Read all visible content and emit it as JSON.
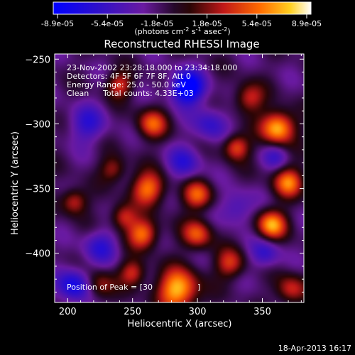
{
  "chart_data": {
    "type": "heatmap",
    "title": "Reconstructed RHESSI Image",
    "xlabel": "Heliocentric X (arcsec)",
    "ylabel": "Heliocentric Y (arcsec)",
    "xlim": [
      190,
      382
    ],
    "ylim": [
      -438,
      -246
    ],
    "x_ticks": [
      200,
      250,
      300,
      350
    ],
    "y_ticks": [
      -250,
      -300,
      -350,
      -400
    ],
    "colorbar": {
      "min": -8.9e-05,
      "max": 8.9e-05,
      "tick_labels": [
        "-8.9e-05",
        "-5.4e-05",
        "-1.8e-05",
        "1.8e-05",
        "5.4e-05",
        "8.9e-05"
      ],
      "unit_text": "(photons cm",
      "unit_sup1": "-2",
      "unit_mid": " s",
      "unit_sup2": "-1",
      "unit_end": " asec",
      "unit_sup3": "-2",
      "unit_close": ")"
    },
    "annotations": {
      "time_range": "23-Nov-2002 23:28:18.000 to 23:34:18.000",
      "detectors": "Detectors: 4F 5F 6F 7F 8F, Att 0",
      "energy_range": "Energy Range: 25.0 - 50.0 keV",
      "clean": "Clean",
      "total_counts": "Total counts: 4.33E+03",
      "peak_position": "Position of Peak = [30",
      "peak_position_tail": "]"
    },
    "blobs": [
      {
        "x": 292,
        "y": -272,
        "v": -8.9e-05,
        "s": 9
      },
      {
        "x": 205,
        "y": -425,
        "v": -6e-05,
        "s": 9
      },
      {
        "x": 265,
        "y": -300,
        "v": 6e-05,
        "s": 8
      },
      {
        "x": 240,
        "y": -270,
        "v": 5e-05,
        "s": 7
      },
      {
        "x": 362,
        "y": -303,
        "v": 8.9e-05,
        "s": 9
      },
      {
        "x": 340,
        "y": -280,
        "v": 5e-05,
        "s": 8
      },
      {
        "x": 330,
        "y": -318,
        "v": 6e-05,
        "s": 7
      },
      {
        "x": 262,
        "y": -350,
        "v": 7e-05,
        "s": 9
      },
      {
        "x": 300,
        "y": -355,
        "v": 6e-05,
        "s": 8
      },
      {
        "x": 370,
        "y": -345,
        "v": 7e-05,
        "s": 8
      },
      {
        "x": 235,
        "y": -335,
        "v": 4e-05,
        "s": 7
      },
      {
        "x": 243,
        "y": -372,
        "v": 5e-05,
        "s": 7
      },
      {
        "x": 205,
        "y": -360,
        "v": 5e-05,
        "s": 7
      },
      {
        "x": 258,
        "y": -385,
        "v": 7e-05,
        "s": 8
      },
      {
        "x": 300,
        "y": -385,
        "v": 6e-05,
        "s": 8
      },
      {
        "x": 357,
        "y": -378,
        "v": 8e-05,
        "s": 8
      },
      {
        "x": 325,
        "y": -408,
        "v": 5e-05,
        "s": 8
      },
      {
        "x": 285,
        "y": -428,
        "v": 8.9e-05,
        "s": 11
      },
      {
        "x": 225,
        "y": -425,
        "v": 4e-05,
        "s": 8
      },
      {
        "x": 250,
        "y": -415,
        "v": 5e-05,
        "s": 7
      },
      {
        "x": 372,
        "y": -428,
        "v": 5e-05,
        "s": 8
      },
      {
        "x": 352,
        "y": -400,
        "v": -4e-05,
        "s": 8
      },
      {
        "x": 310,
        "y": -300,
        "v": -4e-05,
        "s": 9
      },
      {
        "x": 290,
        "y": -330,
        "v": -4e-05,
        "s": 9
      },
      {
        "x": 215,
        "y": -300,
        "v": -4e-05,
        "s": 10
      },
      {
        "x": 225,
        "y": -395,
        "v": -4e-05,
        "s": 9
      },
      {
        "x": 330,
        "y": -365,
        "v": -3.5e-05,
        "s": 9
      },
      {
        "x": 360,
        "y": -325,
        "v": -3e-05,
        "s": 7
      }
    ]
  },
  "footer": {
    "timestamp": "18-Apr-2013 16:17"
  }
}
